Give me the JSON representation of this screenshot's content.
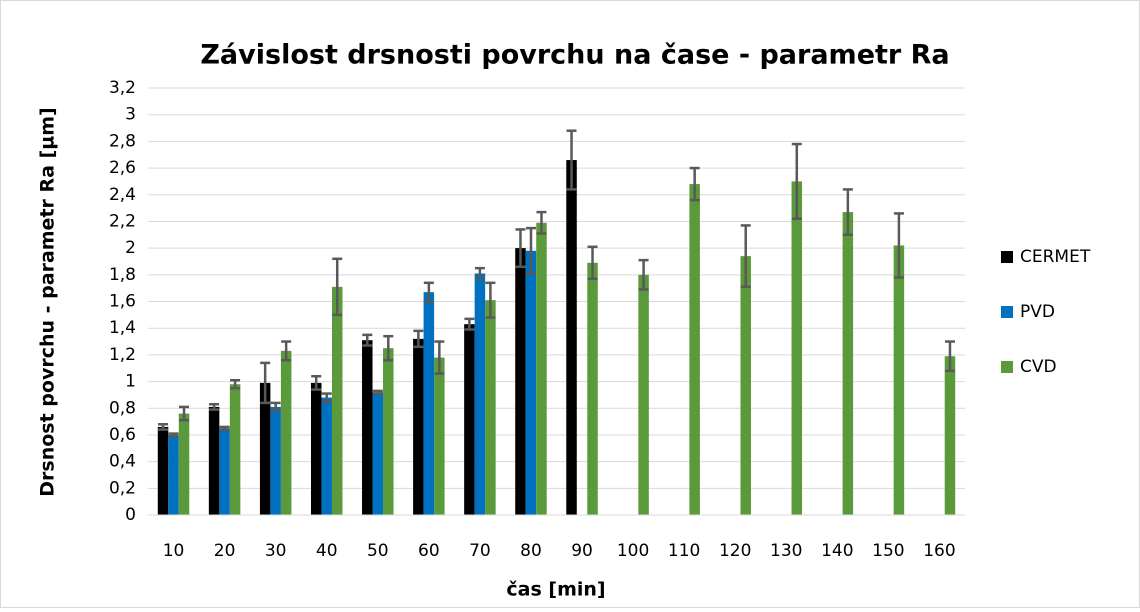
{
  "chart_data": {
    "type": "bar",
    "title": "Závislost drsnosti povrchu na čase - parametr Ra",
    "x_label": "čas [min]",
    "y_label": "Drsnost povrchu - parametr Ra [µm]",
    "categories": [
      "10",
      "20",
      "30",
      "40",
      "50",
      "60",
      "70",
      "80",
      "90",
      "100",
      "110",
      "120",
      "130",
      "140",
      "150",
      "160"
    ],
    "series": [
      {
        "name": "CERMET",
        "color": "#000000",
        "values": [
          0.66,
          0.81,
          0.99,
          0.99,
          1.31,
          1.32,
          1.43,
          2.0,
          2.66,
          null,
          null,
          null,
          null,
          null,
          null,
          null
        ],
        "errors": [
          0.02,
          0.02,
          0.15,
          0.05,
          0.04,
          0.06,
          0.04,
          0.14,
          0.22,
          null,
          null,
          null,
          null,
          null,
          null,
          null
        ]
      },
      {
        "name": "PVD",
        "color": "#0070c0",
        "values": [
          0.6,
          0.65,
          0.81,
          0.88,
          0.92,
          1.67,
          1.81,
          1.98,
          null,
          null,
          null,
          null,
          null,
          null,
          null,
          null
        ],
        "errors": [
          0.01,
          0.01,
          0.03,
          0.03,
          0.01,
          0.07,
          0.04,
          0.17,
          null,
          null,
          null,
          null,
          null,
          null,
          null,
          null
        ]
      },
      {
        "name": "CVD",
        "color": "#5b9a3b",
        "values": [
          0.76,
          0.98,
          1.23,
          1.71,
          1.25,
          1.18,
          1.61,
          2.19,
          1.89,
          1.8,
          2.48,
          1.94,
          2.5,
          2.27,
          2.02,
          1.19
        ],
        "errors": [
          0.05,
          0.03,
          0.07,
          0.21,
          0.09,
          0.12,
          0.13,
          0.08,
          0.12,
          0.11,
          0.12,
          0.23,
          0.28,
          0.17,
          0.24,
          0.11
        ]
      }
    ],
    "ylim": [
      0,
      3.2
    ],
    "yticks": [
      0,
      {
        "value": 0.2,
        "label": "0,2"
      },
      {
        "value": 0.4,
        "label": "0,4"
      },
      {
        "value": 0.6,
        "label": "0,6"
      },
      {
        "value": 0.8,
        "label": "0,8"
      },
      1,
      {
        "value": 1.2,
        "label": "1,2"
      },
      {
        "value": 1.4,
        "label": "1,4"
      },
      {
        "value": 1.6,
        "label": "1,6"
      },
      {
        "value": 1.8,
        "label": "1,8"
      },
      2,
      {
        "value": 2.2,
        "label": "2,2"
      },
      {
        "value": 2.4,
        "label": "2,4"
      },
      {
        "value": 2.6,
        "label": "2,6"
      },
      {
        "value": 2.8,
        "label": "2,8"
      },
      3,
      {
        "value": 3.2,
        "label": "3,2"
      }
    ],
    "grid": true,
    "legend": "right",
    "error_color": "#595959"
  }
}
